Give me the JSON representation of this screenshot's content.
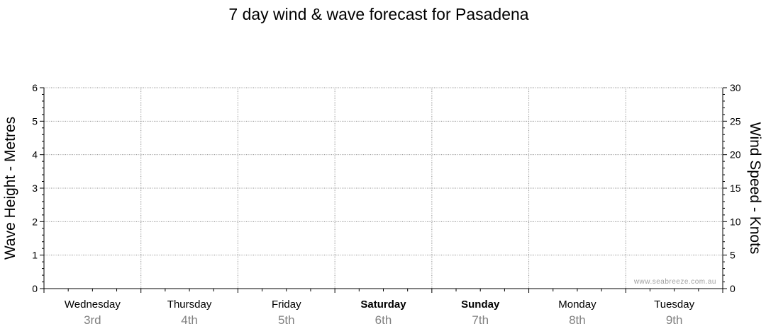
{
  "chart_data": {
    "type": "line",
    "title": "7 day wind & wave forecast for Pasadena",
    "ylabel_left": "Wave Height - Metres",
    "ylabel_right": "Wind Speed - Knots",
    "ylim_left": [
      0,
      6
    ],
    "ylim_right": [
      0,
      30
    ],
    "yticks_left": [
      "0",
      "1",
      "2",
      "3",
      "4",
      "5",
      "6"
    ],
    "yticks_right": [
      "0",
      "5",
      "10",
      "15",
      "20",
      "25",
      "30"
    ],
    "days": [
      {
        "name": "Wednesday",
        "date": "3rd",
        "bold": false
      },
      {
        "name": "Thursday",
        "date": "4th",
        "bold": false
      },
      {
        "name": "Friday",
        "date": "5th",
        "bold": false
      },
      {
        "name": "Saturday",
        "date": "6th",
        "bold": true
      },
      {
        "name": "Sunday",
        "date": "7th",
        "bold": true
      },
      {
        "name": "Monday",
        "date": "8th",
        "bold": false
      },
      {
        "name": "Tuesday",
        "date": "9th",
        "bold": false
      }
    ],
    "series": [],
    "grid": true,
    "watermark": "www.seabreeze.com.au"
  }
}
